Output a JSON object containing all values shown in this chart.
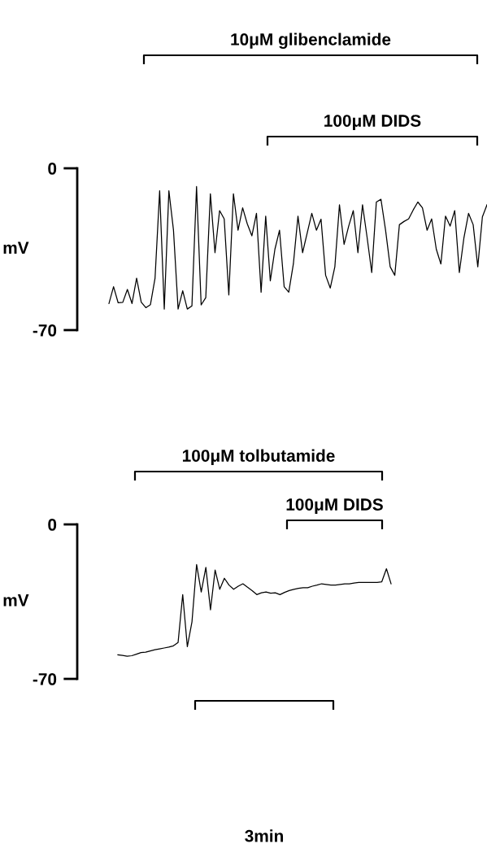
{
  "chart_data": [
    {
      "type": "line",
      "ylabel": "mV",
      "ylim": [
        -70,
        0
      ],
      "yticks": [
        -70,
        0
      ],
      "tick_labels": "y",
      "annotations": [
        "10μM glibenclamide",
        "100μM DIDS"
      ],
      "categories": [
        null,
        null,
        null,
        null,
        null,
        null,
        null,
        null,
        null,
        null,
        null,
        null,
        null,
        null,
        null,
        null,
        null,
        null,
        null,
        null,
        null,
        null,
        null,
        null,
        null,
        null,
        null,
        null,
        null,
        null,
        null,
        null,
        null,
        null,
        null,
        null,
        null,
        null,
        null,
        null,
        null,
        null,
        null,
        null,
        null,
        null,
        null,
        null,
        null,
        null,
        null,
        null,
        null,
        null,
        null,
        null,
        null,
        null,
        null,
        null,
        null,
        null,
        null,
        null,
        null,
        null,
        null,
        null,
        null,
        null,
        null,
        null,
        null,
        null,
        null,
        null,
        null,
        null,
        null,
        null,
        null,
        null,
        null
      ],
      "series": [
        {
          "color": "#000000",
          "values": [
            -58.5,
            -51.2,
            -58.2,
            -58.0,
            -52.4,
            -58.5,
            -47.5,
            -57.9,
            -60.3,
            -59.0,
            -47.5,
            -9.7,
            -60.9,
            -9.7,
            -26.8,
            -60.9,
            -53.0,
            -60.9,
            -59.5,
            -7.9,
            -59.1,
            -56.0,
            -11.0,
            -36.5,
            -18.3,
            -21.9,
            -54.8,
            -11.0,
            -26.8,
            -17.1,
            -24.0,
            -29.2,
            -19.5,
            -53.6,
            -20.7,
            -48.7,
            -35.0,
            -26.8,
            -51.2,
            -53.6,
            -41.4,
            -20.7,
            -36.5,
            -28.0,
            -19.5,
            -26.8,
            -22.0,
            -46.3,
            -51.8,
            -42.6,
            -15.8,
            -32.9,
            -25.0,
            -18.3,
            -36.5,
            -15.8,
            -30.0,
            -45.1,
            -14.6,
            -13.4,
            -26.8,
            -42.6,
            -46.3,
            -24.4,
            -23.0,
            -21.9,
            -18.0,
            -14.6,
            -17.1,
            -26.8,
            -21.9,
            -35.0,
            -41.4,
            -20.7,
            -25.0,
            -18.3,
            -45.1,
            -30.0,
            -19.5,
            -24.4,
            -42.6,
            -21.0,
            -15.8
          ]
        }
      ]
    },
    {
      "type": "line",
      "ylabel": "mV",
      "ylim": [
        -70,
        0
      ],
      "yticks": [
        -70,
        0
      ],
      "tick_labels": "y",
      "annotations": [
        "100μM tolbutamide",
        "100μM DIDS",
        "3min"
      ],
      "categories": [
        null,
        null,
        null,
        null,
        null,
        null,
        null,
        null,
        null,
        null,
        null,
        null,
        null,
        null,
        null,
        null,
        null,
        null,
        null,
        null,
        null,
        null,
        null,
        null,
        null,
        null,
        null,
        null,
        null,
        null,
        null,
        null,
        null,
        null,
        null,
        null,
        null,
        null,
        null,
        null,
        null,
        null,
        null,
        null,
        null,
        null,
        null,
        null,
        null,
        null,
        null,
        null,
        null,
        null,
        null,
        null,
        null,
        null,
        null,
        null
      ],
      "series": [
        {
          "color": "#000000",
          "values": [
            -59.1,
            -59.4,
            -59.7,
            -59.5,
            -58.8,
            -58.1,
            -57.9,
            -57.3,
            -56.8,
            -56.4,
            -56.0,
            -55.6,
            -55.0,
            -53.5,
            -31.8,
            -55.4,
            -44.2,
            -18.2,
            -30.6,
            -19.5,
            -38.7,
            -20.7,
            -29.4,
            -24.4,
            -27.5,
            -29.4,
            -28.0,
            -26.9,
            -28.5,
            -30.0,
            -31.8,
            -31.0,
            -30.6,
            -31.2,
            -31.0,
            -31.8,
            -30.8,
            -30.0,
            -29.4,
            -29.0,
            -28.7,
            -28.7,
            -28.0,
            -27.5,
            -26.9,
            -27.2,
            -27.5,
            -27.5,
            -27.2,
            -26.9,
            -26.9,
            -26.6,
            -26.3,
            -26.3,
            -26.3,
            -26.3,
            -26.3,
            -26.0,
            -20.1,
            -26.9
          ]
        }
      ]
    }
  ]
}
